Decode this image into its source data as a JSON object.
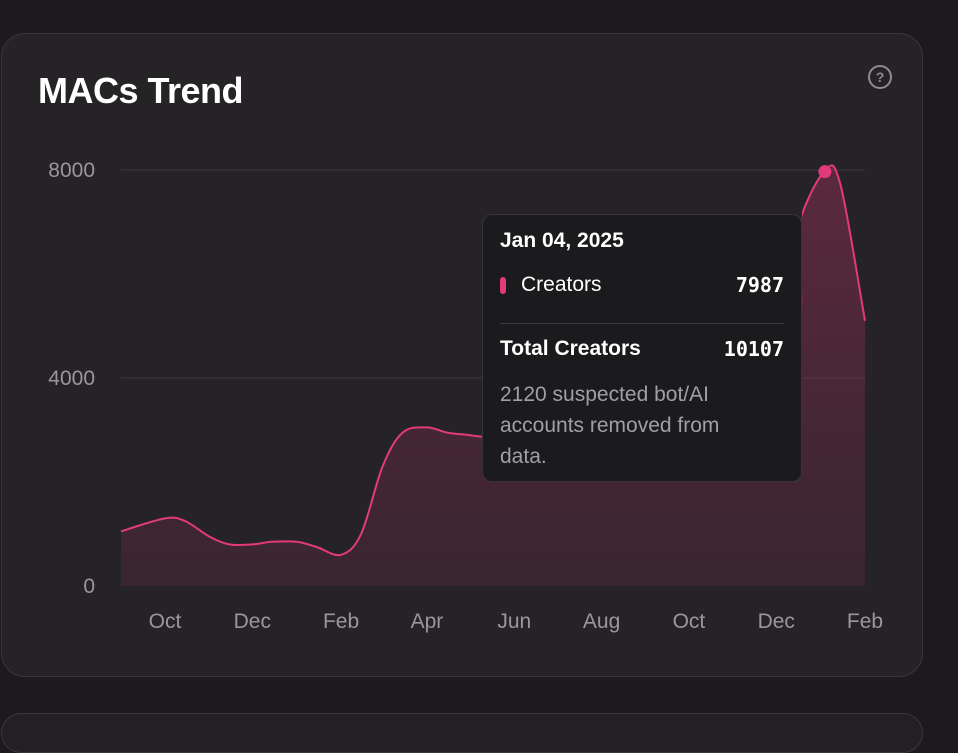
{
  "card": {
    "title": "MACs Trend",
    "help_icon": "question-circle-icon"
  },
  "colors": {
    "accent": "#e23a7a",
    "background": "#262326",
    "axis_text": "#9a979b",
    "grid": "#3b383c"
  },
  "tooltip": {
    "date": "Jan 04, 2025",
    "series_label": "Creators",
    "series_value": "7987",
    "total_label": "Total Creators",
    "total_value": "10107",
    "note": "2120 suspected bot/AI accounts removed from data."
  },
  "chart_data": {
    "type": "area",
    "title": "MACs Trend",
    "xlabel": "",
    "ylabel": "",
    "ylim": [
      0,
      8000
    ],
    "yticks": [
      0,
      4000,
      8000
    ],
    "xticks": [
      "Oct",
      "Dec",
      "Feb",
      "Apr",
      "Jun",
      "Aug",
      "Oct",
      "Dec",
      "Feb"
    ],
    "xtick_dates": [
      "2023-10-01",
      "2023-12-01",
      "2024-02-01",
      "2024-04-01",
      "2024-06-01",
      "2024-08-01",
      "2024-10-01",
      "2024-12-01",
      "2025-02-01"
    ],
    "grid": true,
    "series": [
      {
        "name": "Creators",
        "color": "#e23a7a",
        "x": [
          "2023-09-01",
          "2023-10-01",
          "2023-10-15",
          "2023-11-01",
          "2023-11-15",
          "2023-12-01",
          "2023-12-15",
          "2024-01-01",
          "2024-01-15",
          "2024-02-01",
          "2024-02-15",
          "2024-03-01",
          "2024-03-15",
          "2024-04-01",
          "2024-04-15",
          "2024-05-01",
          "2024-05-15",
          "2024-06-01",
          "2024-12-01",
          "2024-12-15",
          "2025-01-04",
          "2025-01-15",
          "2025-02-01"
        ],
        "values": [
          1050,
          1300,
          1250,
          950,
          800,
          800,
          850,
          850,
          750,
          600,
          1000,
          2300,
          2950,
          3050,
          2950,
          2900,
          2850,
          2800,
          4500,
          6800,
          7987,
          7700,
          5100
        ]
      }
    ],
    "highlight": {
      "x": "2025-01-04",
      "value": 7987,
      "series": "Creators"
    }
  }
}
